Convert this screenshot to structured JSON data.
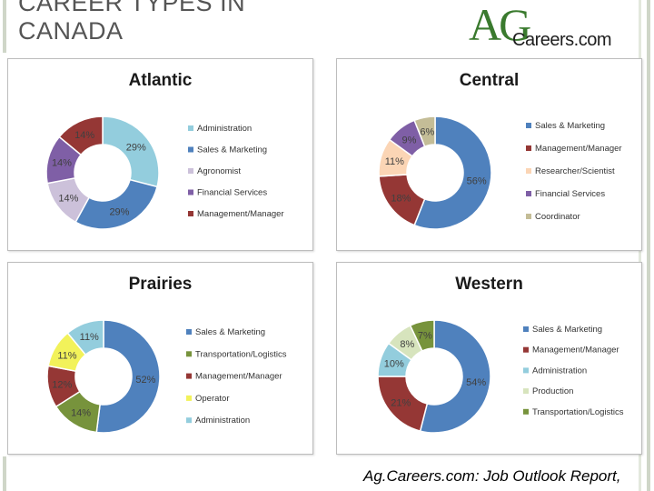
{
  "header": {
    "title": "CAREER TYPES IN CANADA",
    "logo": {
      "ag": "AG",
      "careers": "Careers.com"
    }
  },
  "footer": {
    "source": "Ag.Careers.com: Job Outlook Report,"
  },
  "colors": {
    "sales": "#4f81bd",
    "management": "#953735",
    "admin": "#93cddd",
    "agronomist": "#ccc1da",
    "financial": "#7f5fa6",
    "researcher": "#fbd5b5",
    "coordinator": "#c4bd97",
    "transport": "#77933c",
    "operator": "#f2f25a",
    "production": "#d7e4bd"
  },
  "chart_data": [
    {
      "type": "pie",
      "title": "Atlantic",
      "slices": [
        {
          "label": "Administration",
          "value": 29,
          "display": "29%",
          "color": "#93cddd"
        },
        {
          "label": "Sales & Marketing",
          "value": 29,
          "display": "29%",
          "color": "#4f81bd"
        },
        {
          "label": "Agronomist",
          "value": 14,
          "display": "14%",
          "color": "#ccc1da"
        },
        {
          "label": "Financial Services",
          "value": 14,
          "display": "14%",
          "color": "#7f5fa6"
        },
        {
          "label": "Management/Manager",
          "value": 14,
          "display": "14%",
          "color": "#953735"
        }
      ]
    },
    {
      "type": "pie",
      "title": "Central",
      "slices": [
        {
          "label": "Sales & Marketing",
          "value": 56,
          "display": "56%",
          "color": "#4f81bd"
        },
        {
          "label": "Management/Manager",
          "value": 18,
          "display": "18%",
          "color": "#953735"
        },
        {
          "label": "Researcher/Scientist",
          "value": 11,
          "display": "11%",
          "color": "#fbd5b5"
        },
        {
          "label": "Financial Services",
          "value": 9,
          "display": "9%",
          "color": "#7f5fa6"
        },
        {
          "label": "Coordinator",
          "value": 6,
          "display": "6%",
          "color": "#c4bd97"
        }
      ]
    },
    {
      "type": "pie",
      "title": "Prairies",
      "slices": [
        {
          "label": "Sales & Marketing",
          "value": 52,
          "display": "52%",
          "color": "#4f81bd"
        },
        {
          "label": "Transportation/Logistics",
          "value": 14,
          "display": "14%",
          "color": "#77933c"
        },
        {
          "label": "Management/Manager",
          "value": 12,
          "display": "12%",
          "color": "#953735"
        },
        {
          "label": "Operator",
          "value": 11,
          "display": "11%",
          "color": "#f2f25a"
        },
        {
          "label": "Administration",
          "value": 11,
          "display": "11%",
          "color": "#93cddd"
        }
      ]
    },
    {
      "type": "pie",
      "title": "Western",
      "slices": [
        {
          "label": "Sales & Marketing",
          "value": 54,
          "display": "54%",
          "color": "#4f81bd"
        },
        {
          "label": "Management/Manager",
          "value": 21,
          "display": "21%",
          "color": "#953735"
        },
        {
          "label": "Administration",
          "value": 10,
          "display": "10%",
          "color": "#93cddd"
        },
        {
          "label": "Production",
          "value": 8,
          "display": "8%",
          "color": "#d7e4bd"
        },
        {
          "label": "Transportation/Logistics",
          "value": 7,
          "display": "7%",
          "color": "#77933c"
        }
      ]
    }
  ]
}
